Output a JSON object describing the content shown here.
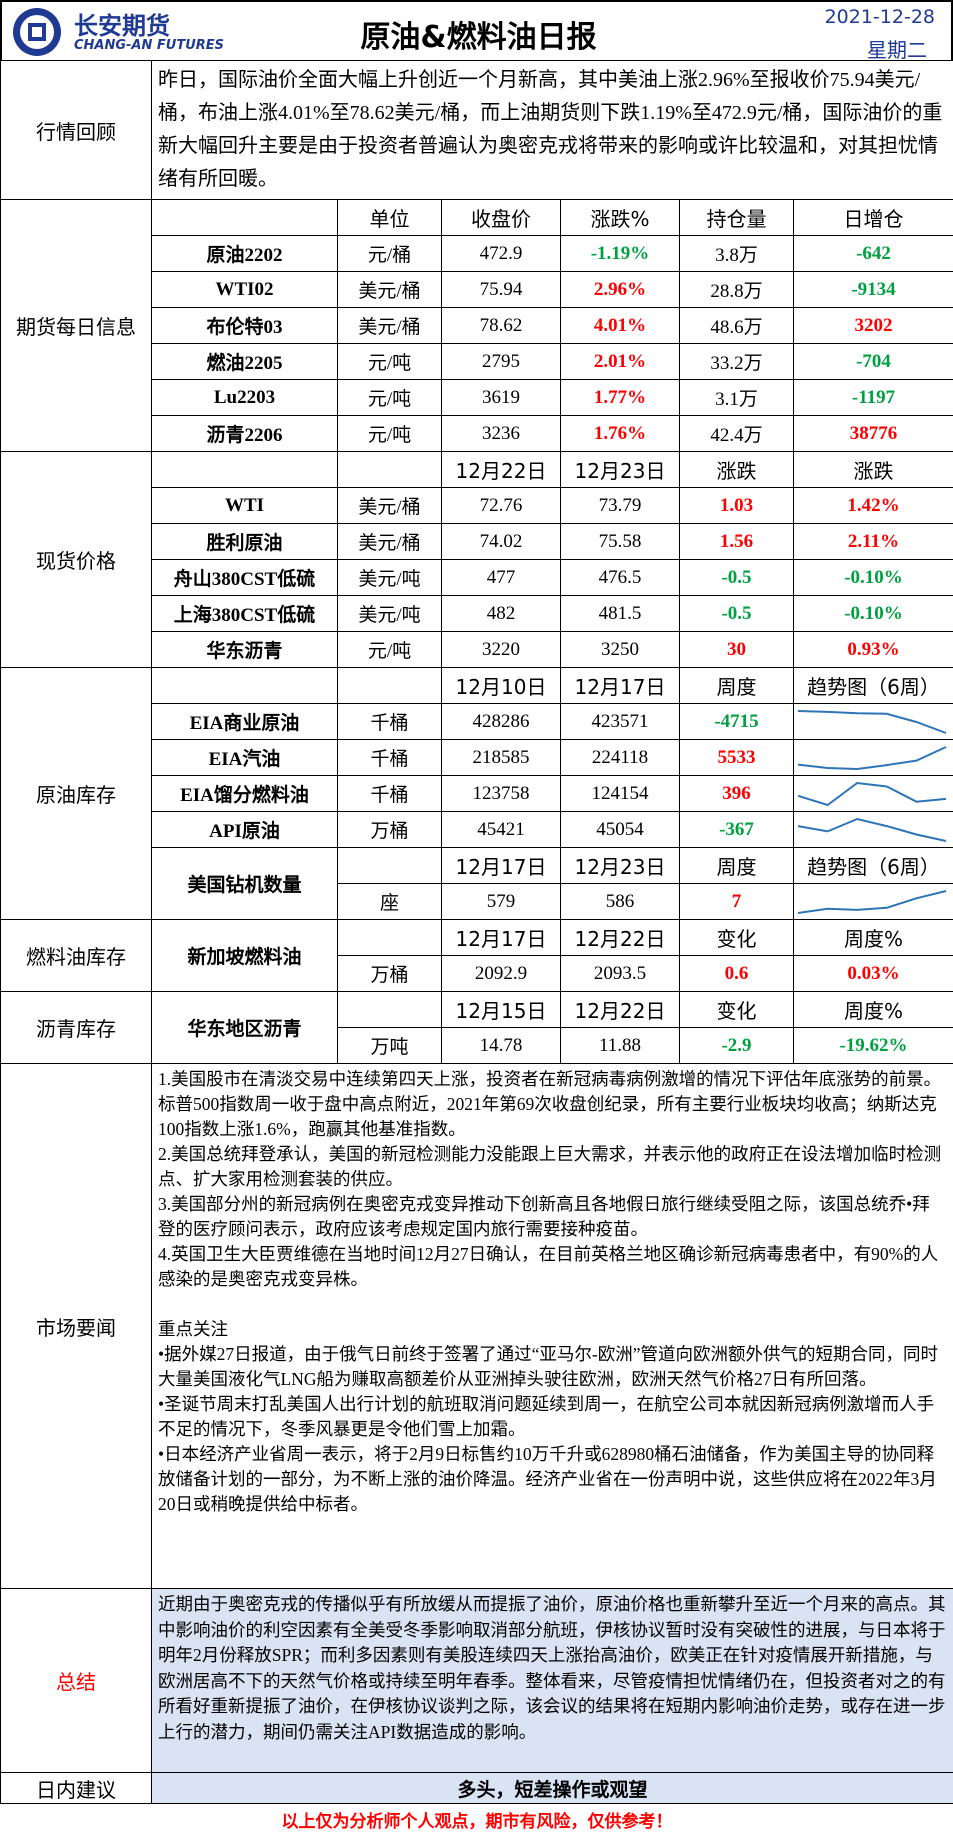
{
  "header": {
    "logo_cn": "长安期货",
    "logo_en": "CHANG-AN FUTURES",
    "title": "原油&燃料油日报",
    "date": "2021-12-28",
    "weekday": "星期二"
  },
  "review": {
    "label": "行情回顾",
    "text": "昨日，国际油价全面大幅上升创近一个月新高，其中美油上涨2.96%至报收价75.94美元/桶，布油上涨4.01%至78.62美元/桶，而上油期货则下跌1.19%至472.9元/桶，国际油价的重新大幅回升主要是由于投资者普遍认为奥密克戎将带来的影响或许比较温和，对其担忧情绪有所回暖。"
  },
  "futures": {
    "label": "期货每日信息",
    "columns": [
      "单位",
      "收盘价",
      "涨跌%",
      "持仓量",
      "日增仓"
    ],
    "rows": [
      [
        "原油2202",
        "元/桶",
        "472.9",
        "-1.19%",
        "3.8万",
        "-642"
      ],
      [
        "WTI02",
        "美元/桶",
        "75.94",
        "2.96%",
        "28.8万",
        "-9134"
      ],
      [
        "布伦特03",
        "美元/桶",
        "78.62",
        "4.01%",
        "48.6万",
        "3202"
      ],
      [
        "燃油2205",
        "元/吨",
        "2795",
        "2.01%",
        "33.2万",
        "-704"
      ],
      [
        "Lu2203",
        "元/吨",
        "3619",
        "1.77%",
        "3.1万",
        "-1197"
      ],
      [
        "沥青2206",
        "元/吨",
        "3236",
        "1.76%",
        "42.4万",
        "38776"
      ]
    ]
  },
  "spot": {
    "label": "现货价格",
    "columns": [
      "12月22日",
      "12月23日",
      "涨跌",
      "涨跌"
    ],
    "rows": [
      [
        "WTI",
        "美元/桶",
        "72.76",
        "73.79",
        "1.03",
        "1.42%"
      ],
      [
        "胜利原油",
        "美元/桶",
        "74.02",
        "75.58",
        "1.56",
        "2.11%"
      ],
      [
        "舟山380CST低硫",
        "美元/吨",
        "477",
        "476.5",
        "-0.5",
        "-0.10%"
      ],
      [
        "上海380CST低硫",
        "美元/吨",
        "482",
        "481.5",
        "-0.5",
        "-0.10%"
      ],
      [
        "华东沥青",
        "元/吨",
        "3220",
        "3250",
        "30",
        "0.93%"
      ]
    ]
  },
  "crude_inventory": {
    "label": "原油库存",
    "columns": [
      "12月10日",
      "12月17日",
      "周度",
      "趋势图（6周）"
    ],
    "rows": [
      {
        "cells": [
          "EIA商业原油",
          "千桶",
          "428286",
          "423571",
          "-4715"
        ],
        "trend": [
          433000,
          432600,
          432000,
          431800,
          428286,
          423571
        ]
      },
      {
        "cells": [
          "EIA汽油",
          "千桶",
          "218585",
          "224118",
          "5533"
        ],
        "trend": [
          217000,
          215600,
          215200,
          216800,
          218585,
          224118
        ]
      },
      {
        "cells": [
          "EIA馏分燃料油",
          "千桶",
          "123758",
          "124154",
          "396"
        ],
        "trend": [
          124600,
          123300,
          126400,
          125900,
          123758,
          124154
        ]
      },
      {
        "cells": [
          "API原油",
          "万桶",
          "45421",
          "45054",
          "-367"
        ],
        "trend": [
          45900,
          45600,
          46300,
          45900,
          45421,
          45054
        ]
      }
    ],
    "rig": {
      "name": "美国钻机数量",
      "columns": [
        "12月17日",
        "12月23日",
        "周度",
        "趋势图（6周）"
      ],
      "cells": [
        "座",
        "579",
        "586",
        "7"
      ],
      "trend": [
        565,
        569,
        568,
        570,
        579,
        586
      ]
    }
  },
  "fuel_inventory": {
    "label": "燃料油库存",
    "name": "新加坡燃料油",
    "columns": [
      "12月17日",
      "12月22日",
      "变化",
      "周度%"
    ],
    "cells": [
      "万桶",
      "2092.9",
      "2093.5",
      "0.6",
      "0.03%"
    ]
  },
  "asphalt_inventory": {
    "label": "沥青库存",
    "name": "华东地区沥青",
    "columns": [
      "12月15日",
      "12月22日",
      "变化",
      "周度%"
    ],
    "cells": [
      "万吨",
      "14.78",
      "11.88",
      "-2.9",
      "-19.62%"
    ]
  },
  "news": {
    "label": "市场要闻",
    "items": [
      "1.美国股市在清淡交易中连续第四天上涨，投资者在新冠病毒病例激增的情况下评估年底涨势的前景。标普500指数周一收于盘中高点附近，2021年第69次收盘创纪录，所有主要行业板块均收高；纳斯达克100指数上涨1.6%，跑赢其他基准指数。",
      "2.美国总统拜登承认，美国的新冠检测能力没能跟上巨大需求，并表示他的政府正在设法增加临时检测点、扩大家用检测套装的供应。",
      "3.美国部分州的新冠病例在奥密克戎变异推动下创新高且各地假日旅行继续受阻之际，该国总统乔•拜登的医疗顾问表示，政府应该考虑规定国内旅行需要接种疫苗。",
      "4.英国卫生大臣贾维德在当地时间12月27日确认，在目前英格兰地区确诊新冠病毒患者中，有90%的人感染的是奥密克戎变异株。"
    ],
    "focus_title": "重点关注",
    "focus_items": [
      "•据外媒27日报道，由于俄气日前终于签署了通过“亚马尔-欧洲”管道向欧洲额外供气的短期合同，同时大量美国液化气LNG船为赚取高额差价从亚洲掉头驶往欧洲，欧洲天然气价格27日有所回落。",
      "•圣诞节周末打乱美国人出行计划的航班取消问题延续到周一，在航空公司本就因新冠病例激增而人手不足的情况下，冬季风暴更是令他们雪上加霜。",
      "•日本经济产业省周一表示，将于2月9日标售约10万千升或628980桶石油储备，作为美国主导的协同释放储备计划的一部分，为不断上涨的油价降温。经济产业省在一份声明中说，这些供应将在2022年3月20日或稍晚提供给中标者。"
    ]
  },
  "summary": {
    "label": "总结",
    "text": "近期由于奥密克戎的传播似乎有所放缓从而提振了油价，原油价格也重新攀升至近一个月来的高点。其中影响油价的利空因素有全美受冬季影响取消部分航班，伊核协议暂时没有突破性的进展，与日本将于明年2月份释放SPR；而利多因素则有美股连续四天上涨抬高油价，欧美正在针对疫情展开新措施，与欧洲居高不下的天然气价格或持续至明年春季。整体看来，尽管疫情担忧情绪仍在，但投资者对之的有所看好重新提振了油价，在伊核协议谈判之际，该会议的结果将在短期内影响油价走势，或存在进一步上行的潜力，期间仍需关注API数据造成的影响。"
  },
  "advice": {
    "label": "日内建议",
    "text": "多头，短差操作或观望"
  },
  "footer": "以上仅为分析师个人观点，期市有风险，仅供参考！"
}
